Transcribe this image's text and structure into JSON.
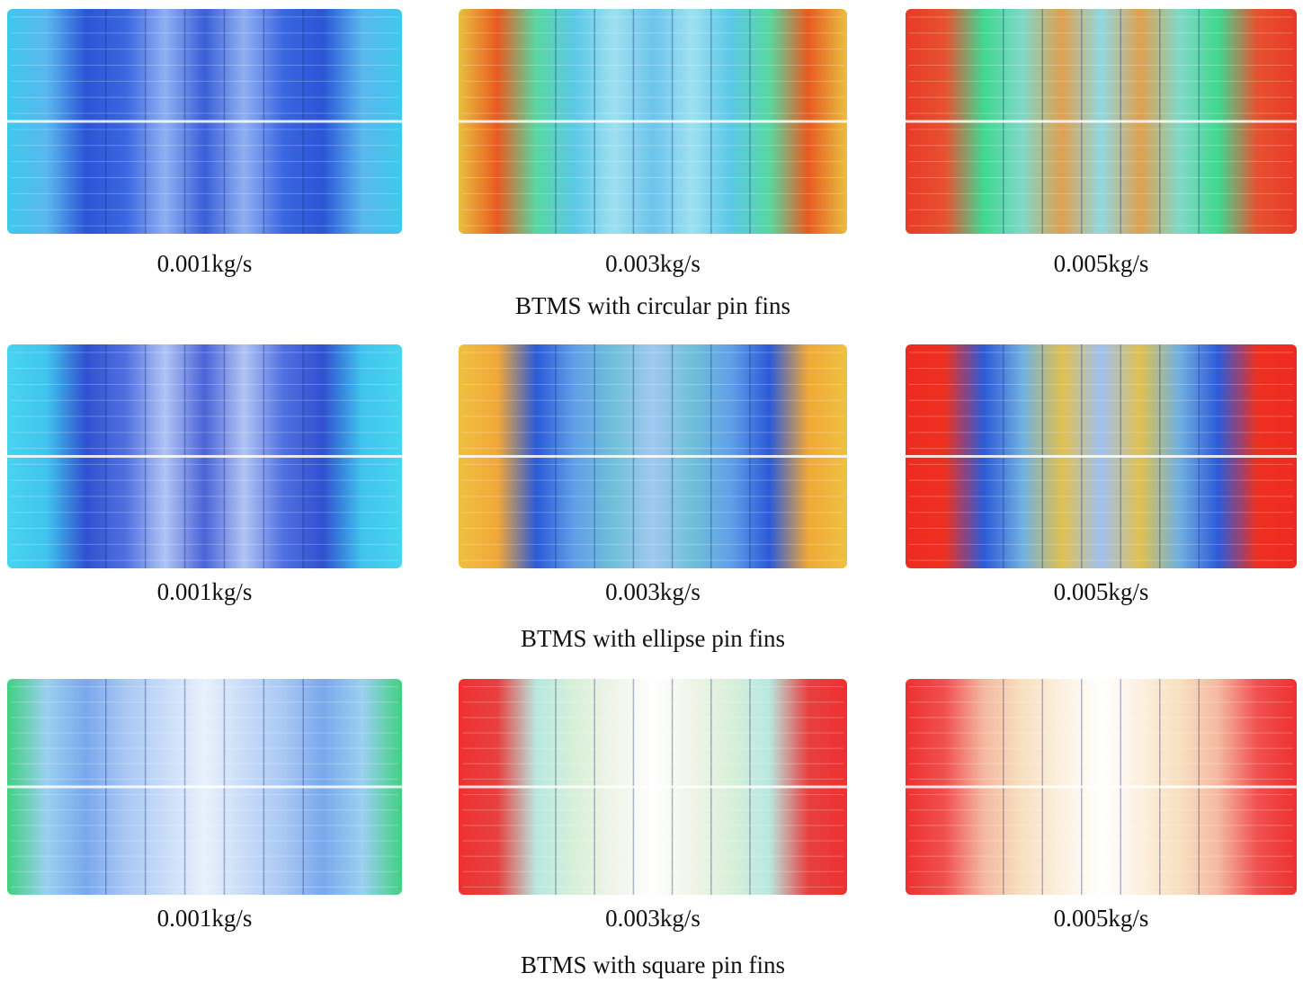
{
  "groups": [
    {
      "title": "BTMS with circular pin fins",
      "panels": [
        {
          "label": "0.001kg/s"
        },
        {
          "label": "0.003kg/s"
        },
        {
          "label": "0.005kg/s"
        }
      ]
    },
    {
      "title": "BTMS with ellipse pin fins",
      "panels": [
        {
          "label": "0.001kg/s"
        },
        {
          "label": "0.003kg/s"
        },
        {
          "label": "0.005kg/s"
        }
      ]
    },
    {
      "title": "BTMS with square pin fins",
      "panels": [
        {
          "label": "0.001kg/s"
        },
        {
          "label": "0.003kg/s"
        },
        {
          "label": "0.005kg/s"
        }
      ]
    }
  ]
}
